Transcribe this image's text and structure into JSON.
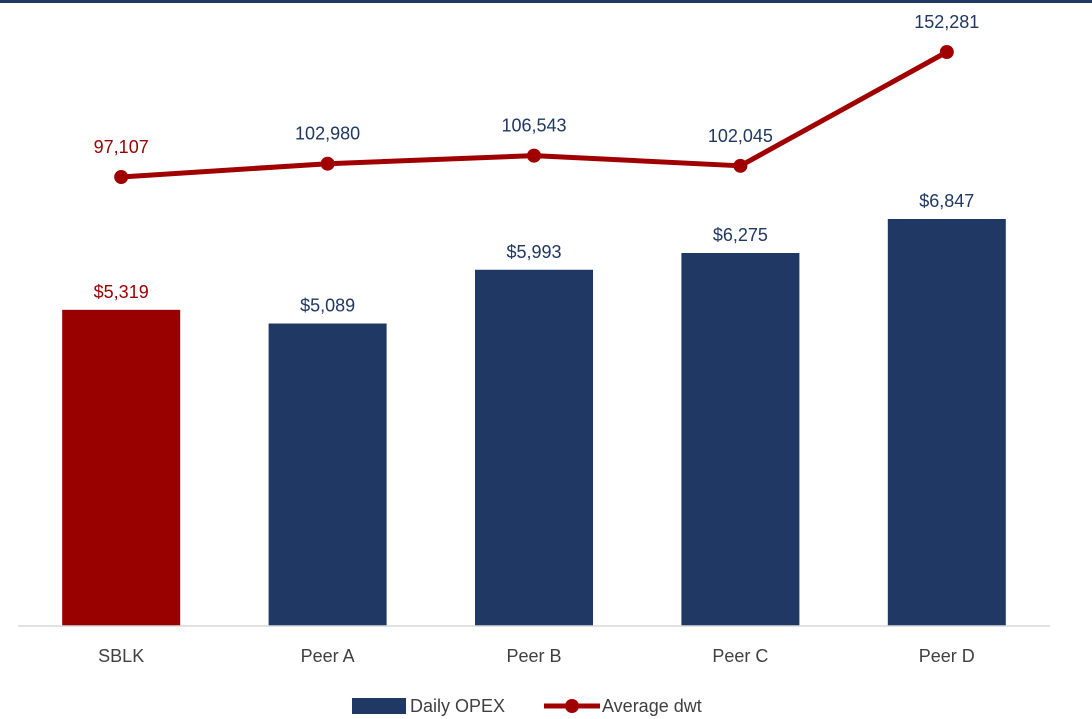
{
  "chart_data": {
    "type": "bar",
    "categories": [
      "SBLK",
      "Peer A",
      "Peer B",
      "Peer C",
      "Peer D"
    ],
    "series": [
      {
        "name": "Daily OPEX",
        "type": "bar",
        "values": [
          5319,
          5089,
          5993,
          6275,
          6847
        ],
        "labels": [
          "$5,319",
          "$5,089",
          "$5,993",
          "$6,275",
          "$6,847"
        ],
        "colors": [
          "#990000",
          "#203864",
          "#203864",
          "#203864",
          "#203864"
        ],
        "label_colors": [
          "#990000",
          "#203864",
          "#203864",
          "#203864",
          "#203864"
        ]
      },
      {
        "name": "Average dwt",
        "type": "line",
        "values": [
          97107,
          102980,
          106543,
          102045,
          152281
        ],
        "labels": [
          "97,107",
          "102,980",
          "106,543",
          "102,045",
          "152,281"
        ],
        "color": "#a00000",
        "label_colors": [
          "#990000",
          "#203864",
          "#203864",
          "#203864",
          "#203864"
        ]
      }
    ],
    "ylim_bars": [
      0,
      7300
    ],
    "ylim_line": [
      0,
      165000
    ],
    "grid": false,
    "legend_position": "bottom",
    "title": "",
    "xlabel": "",
    "ylabel": ""
  }
}
